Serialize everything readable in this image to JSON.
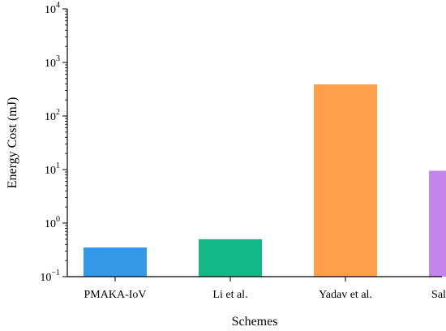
{
  "chart_data": {
    "type": "bar",
    "title": "",
    "xlabel": "Schemes",
    "ylabel": "Energy Cost (mJ)",
    "yscale": "log",
    "ylim": [
      0.1,
      10000
    ],
    "yticks": [
      {
        "base": "10",
        "exp": "−1",
        "value": 0.1
      },
      {
        "base": "10",
        "exp": "0",
        "value": 1
      },
      {
        "base": "10",
        "exp": "1",
        "value": 10
      },
      {
        "base": "10",
        "exp": "2",
        "value": 100
      },
      {
        "base": "10",
        "exp": "3",
        "value": 1000
      },
      {
        "base": "10",
        "exp": "4",
        "value": 10000
      }
    ],
    "categories": [
      "PMAKA-IoV",
      "Li et al.",
      "Yadav et al.",
      "Saleem et al."
    ],
    "values": [
      0.35,
      0.5,
      390,
      9.5
    ],
    "colors": [
      "#3399e6",
      "#12b886",
      "#ff9f4a",
      "#c285ea"
    ],
    "grid": false
  }
}
